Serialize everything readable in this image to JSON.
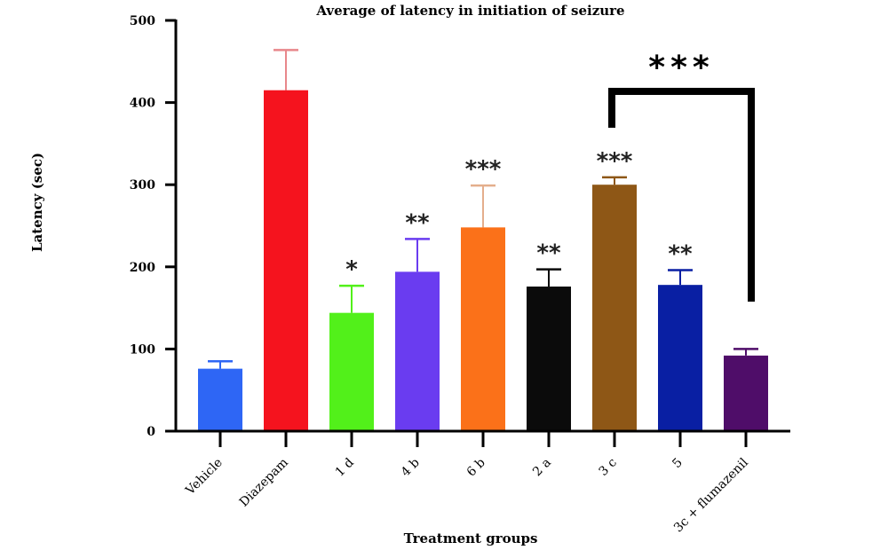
{
  "chart_data": {
    "type": "bar",
    "title": "Average of latency in initiation of seizure",
    "xlabel": "Treatment groups",
    "ylabel": "Latency (sec)",
    "ylim": [
      0,
      500
    ],
    "yticks": [
      0,
      100,
      200,
      300,
      400,
      500
    ],
    "grid": false,
    "categories": [
      "Vehicle",
      "Diazepam",
      "1 d",
      "4 b",
      "6 b",
      "2 a",
      "3 c",
      "5",
      "3c + flumazenil"
    ],
    "values": [
      76,
      415,
      144,
      194,
      248,
      176,
      300,
      178,
      92
    ],
    "error": [
      9,
      49,
      33,
      40,
      51,
      21,
      9,
      18,
      8
    ],
    "significance": [
      "",
      "",
      "*",
      "**",
      "***",
      "**",
      "***",
      "**",
      ""
    ],
    "comparison": {
      "from": "3 c",
      "to": "3c + flumazenil",
      "label": "***"
    },
    "colors": [
      "#2e66f5",
      "#f5131e",
      "#52f01a",
      "#6a3cf0",
      "#fb7119",
      "#0b0b0b",
      "#8e5716",
      "#091fa3",
      "#4f0d69"
    ],
    "error_colors": [
      "#2e66f5",
      "#e8878b",
      "#52f01a",
      "#6a3cf0",
      "#e4ae8c",
      "#0b0b0b",
      "#8e5716",
      "#091fa3",
      "#4f0d69"
    ]
  }
}
